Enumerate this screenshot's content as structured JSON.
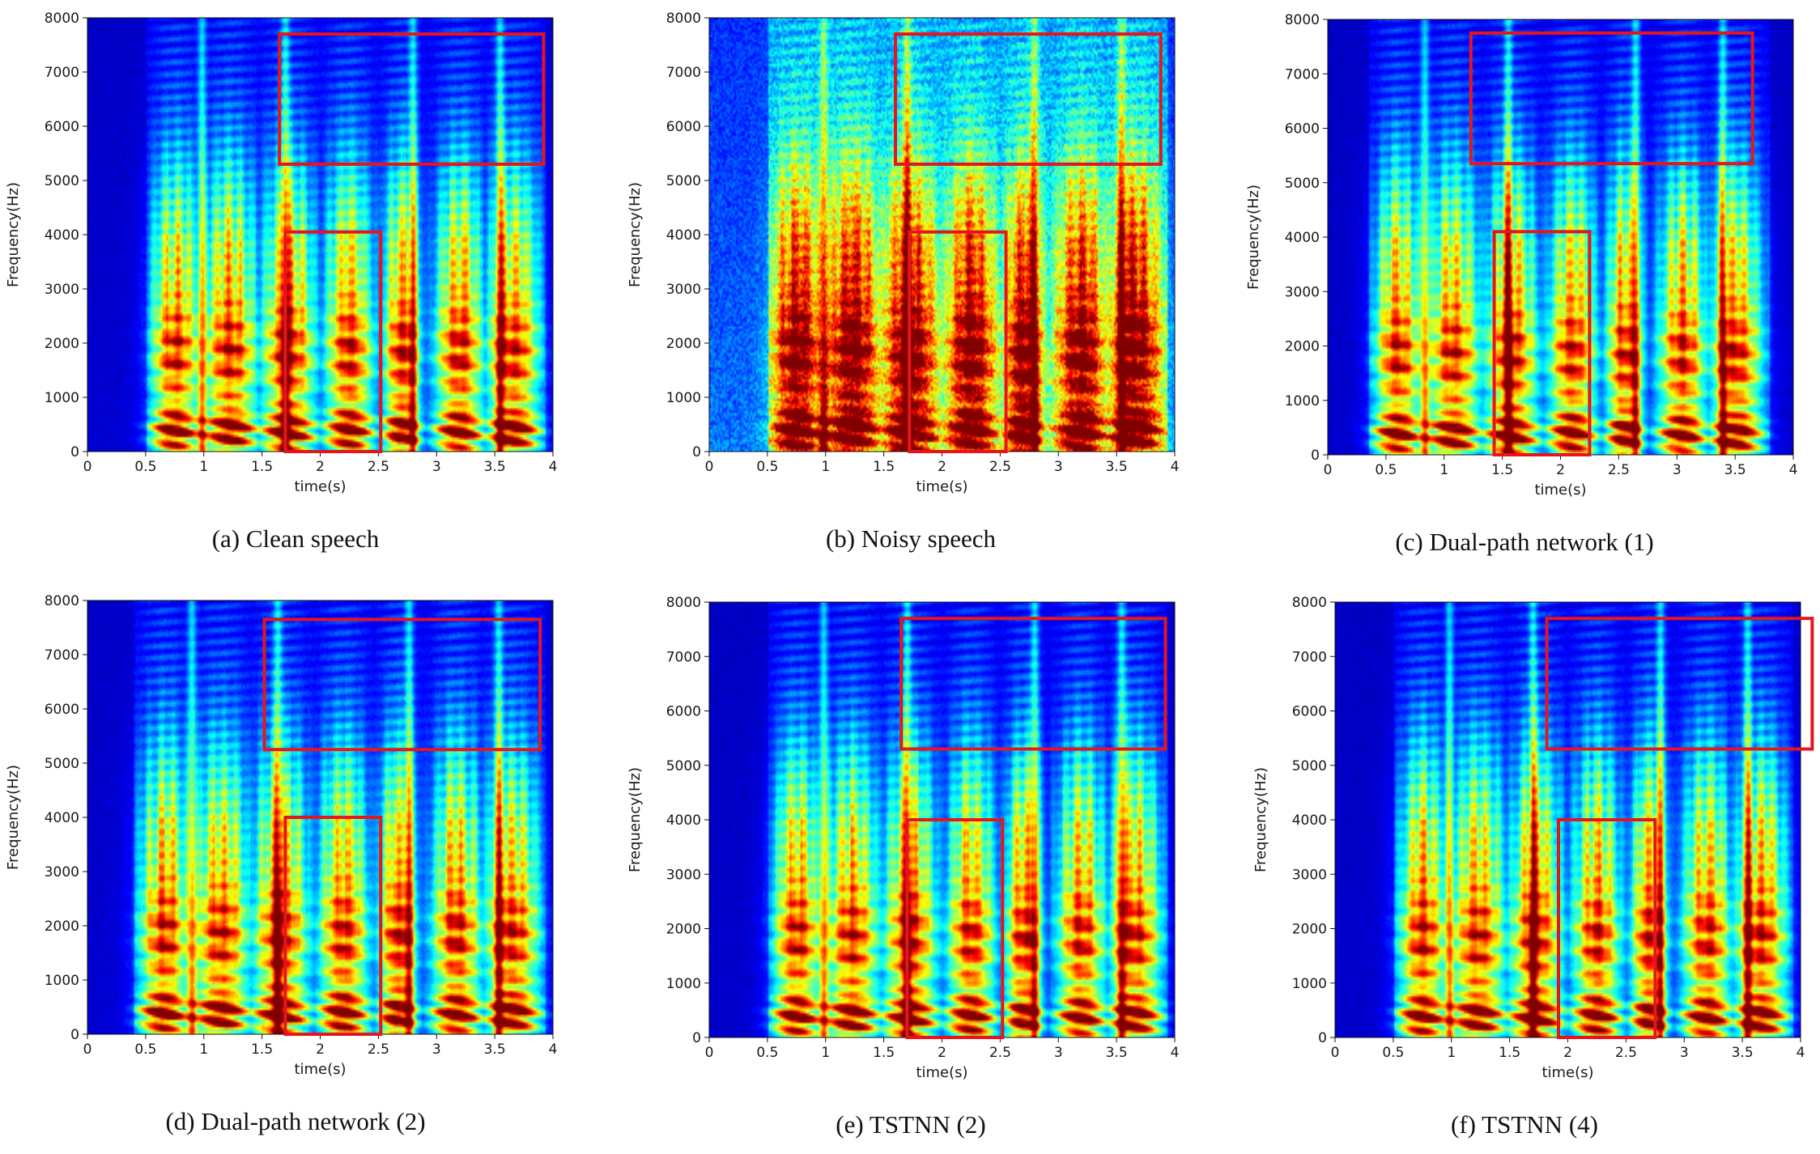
{
  "colors": {
    "background": "#000080",
    "highlight_box": "#e8141c",
    "axis": "#111111"
  },
  "colormap": "jet",
  "chart_data": [
    {
      "id": "a",
      "type": "heatmap",
      "caption": "(a) Clean speech",
      "xlabel": "time(s)",
      "ylabel": "Frequency(Hz)",
      "xlim": [
        0,
        4
      ],
      "ylim": [
        0,
        8000
      ],
      "xticks": [
        "0",
        "0.5",
        "1",
        "1.5",
        "2",
        "2.5",
        "3",
        "3.5",
        "4"
      ],
      "xtick_values": [
        0,
        0.5,
        1,
        1.5,
        2,
        2.5,
        3,
        3.5,
        4
      ],
      "yticks": [
        "0",
        "1000",
        "2000",
        "3000",
        "4000",
        "5000",
        "6000",
        "7000",
        "8000"
      ],
      "ytick_values": [
        0,
        1000,
        2000,
        3000,
        4000,
        5000,
        6000,
        7000,
        8000
      ],
      "noise_level": 0.05,
      "speech_start": 0.55,
      "speech_end": 3.9,
      "highlight_boxes": [
        {
          "t0": 1.65,
          "t1": 3.92,
          "f0": 5300,
          "f1": 7700
        },
        {
          "t0": 1.7,
          "t1": 2.52,
          "f0": 0,
          "f1": 4050
        }
      ]
    },
    {
      "id": "b",
      "type": "heatmap",
      "caption": "(b) Noisy speech",
      "xlabel": "time(s)",
      "ylabel": "Frequency(Hz)",
      "xlim": [
        0,
        4
      ],
      "ylim": [
        0,
        8000
      ],
      "xticks": [
        "0",
        "0.5",
        "1",
        "1.5",
        "2",
        "2.5",
        "3",
        "3.5",
        "4"
      ],
      "xtick_values": [
        0,
        0.5,
        1,
        1.5,
        2,
        2.5,
        3,
        3.5,
        4
      ],
      "yticks": [
        "0",
        "1000",
        "2000",
        "3000",
        "4000",
        "5000",
        "6000",
        "7000",
        "8000"
      ],
      "ytick_values": [
        0,
        1000,
        2000,
        3000,
        4000,
        5000,
        6000,
        7000,
        8000
      ],
      "noise_level": 0.32,
      "speech_start": 0.55,
      "speech_end": 3.9,
      "highlight_boxes": [
        {
          "t0": 1.6,
          "t1": 3.88,
          "f0": 5300,
          "f1": 7700
        },
        {
          "t0": 1.72,
          "t1": 2.55,
          "f0": 0,
          "f1": 4050
        }
      ]
    },
    {
      "id": "c",
      "type": "heatmap",
      "caption": "(c) Dual-path network (1)",
      "xlabel": "time(s)",
      "ylabel": "Frequency(Hz)",
      "xlim": [
        0,
        4
      ],
      "ylim": [
        0,
        8000
      ],
      "xticks": [
        "0",
        "0.5",
        "1",
        "1.5",
        "2",
        "2.5",
        "3",
        "3.5",
        "4"
      ],
      "xtick_values": [
        0,
        0.5,
        1,
        1.5,
        2,
        2.5,
        3,
        3.5,
        4
      ],
      "yticks": [
        "0",
        "1000",
        "2000",
        "3000",
        "4000",
        "5000",
        "6000",
        "7000",
        "8000"
      ],
      "ytick_values": [
        0,
        1000,
        2000,
        3000,
        4000,
        5000,
        6000,
        7000,
        8000
      ],
      "noise_level": 0.04,
      "speech_start": 0.4,
      "speech_end": 3.75,
      "highlight_boxes": [
        {
          "t0": 1.23,
          "t1": 3.65,
          "f0": 5350,
          "f1": 7750
        },
        {
          "t0": 1.43,
          "t1": 2.25,
          "f0": 0,
          "f1": 4100
        }
      ]
    },
    {
      "id": "d",
      "type": "heatmap",
      "caption": "(d) Dual-path network (2)",
      "xlabel": "time(s)",
      "ylabel": "Frequency(Hz)",
      "xlim": [
        0,
        4
      ],
      "ylim": [
        0,
        8000
      ],
      "xticks": [
        "0",
        "0.5",
        "1",
        "1.5",
        "2",
        "2.5",
        "3",
        "3.5",
        "4"
      ],
      "xtick_values": [
        0,
        0.5,
        1,
        1.5,
        2,
        2.5,
        3,
        3.5,
        4
      ],
      "yticks": [
        "0",
        "1000",
        "2000",
        "3000",
        "4000",
        "5000",
        "6000",
        "7000",
        "8000"
      ],
      "ytick_values": [
        0,
        1000,
        2000,
        3000,
        4000,
        5000,
        6000,
        7000,
        8000
      ],
      "noise_level": 0.05,
      "speech_start": 0.45,
      "speech_end": 3.9,
      "highlight_boxes": [
        {
          "t0": 1.52,
          "t1": 3.89,
          "f0": 5250,
          "f1": 7650
        },
        {
          "t0": 1.7,
          "t1": 2.52,
          "f0": 0,
          "f1": 4000
        }
      ]
    },
    {
      "id": "e",
      "type": "heatmap",
      "caption": "(e) TSTNN (2)",
      "xlabel": "time(s)",
      "ylabel": "Frequency(Hz)",
      "xlim": [
        0,
        4
      ],
      "ylim": [
        0,
        8000
      ],
      "xticks": [
        "0",
        "0.5",
        "1",
        "1.5",
        "2",
        "2.5",
        "3",
        "3.5",
        "4"
      ],
      "xtick_values": [
        0,
        0.5,
        1,
        1.5,
        2,
        2.5,
        3,
        3.5,
        4
      ],
      "yticks": [
        "0",
        "1000",
        "2000",
        "3000",
        "4000",
        "5000",
        "6000",
        "7000",
        "8000"
      ],
      "ytick_values": [
        0,
        1000,
        2000,
        3000,
        4000,
        5000,
        6000,
        7000,
        8000
      ],
      "noise_level": 0.04,
      "speech_start": 0.55,
      "speech_end": 3.9,
      "highlight_boxes": [
        {
          "t0": 1.65,
          "t1": 3.92,
          "f0": 5300,
          "f1": 7700
        },
        {
          "t0": 1.7,
          "t1": 2.52,
          "f0": 0,
          "f1": 4000
        }
      ]
    },
    {
      "id": "f",
      "type": "heatmap",
      "caption": "(f) TSTNN (4)",
      "xlabel": "time(s)",
      "ylabel": "Frequency(Hz)",
      "xlim": [
        0,
        4
      ],
      "ylim": [
        0,
        8000
      ],
      "xticks": [
        "0",
        "0.5",
        "1",
        "1.5",
        "2",
        "2.5",
        "3",
        "3.5",
        "4"
      ],
      "xtick_values": [
        0,
        0.5,
        1,
        1.5,
        2,
        2.5,
        3,
        3.5,
        4
      ],
      "yticks": [
        "0",
        "1000",
        "2000",
        "3000",
        "4000",
        "5000",
        "6000",
        "7000",
        "8000"
      ],
      "ytick_values": [
        0,
        1000,
        2000,
        3000,
        4000,
        5000,
        6000,
        7000,
        8000
      ],
      "noise_level": 0.04,
      "speech_start": 0.55,
      "speech_end": 3.9,
      "highlight_boxes": [
        {
          "t0": 1.82,
          "t1": 4.1,
          "f0": 5300,
          "f1": 7700
        },
        {
          "t0": 1.92,
          "t1": 2.75,
          "f0": 0,
          "f1": 4000
        }
      ]
    }
  ]
}
